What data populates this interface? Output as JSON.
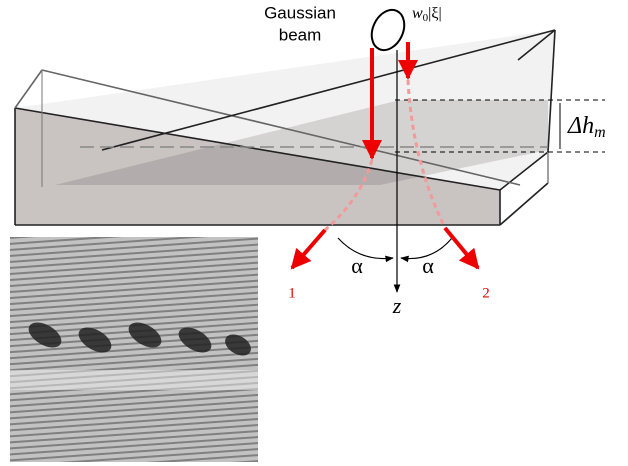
{
  "labels": {
    "beam": [
      "Gaussian",
      "beam"
    ],
    "waist": {
      "base": "w",
      "sub": "0",
      "rest": "|ξ|"
    },
    "height": {
      "base": "Δh",
      "sub": "m"
    },
    "angle_left": "α",
    "angle_right": "α",
    "beam_1": "1",
    "beam_2": "2",
    "axis": "z"
  }
}
